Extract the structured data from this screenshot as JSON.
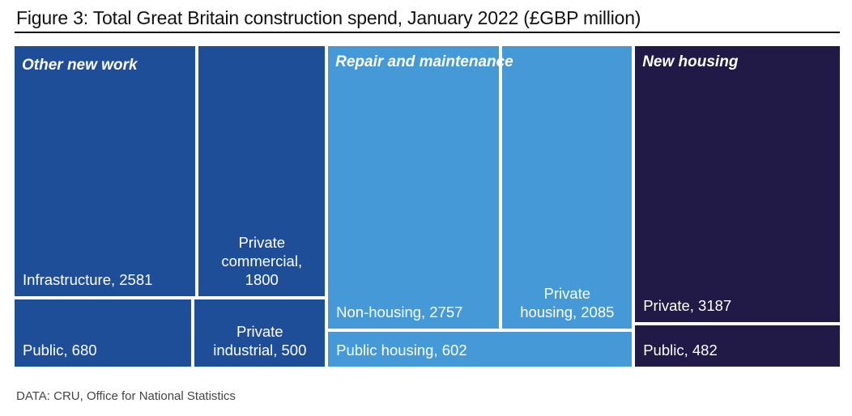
{
  "title": "Figure 3: Total Great Britain construction spend, January 2022 (£GBP million)",
  "source": "DATA: CRU, Office for National Statistics",
  "chart_data": {
    "type": "treemap",
    "title": "Figure 3: Total Great Britain construction spend, January 2022 (£GBP million)",
    "units": "£GBP million",
    "groups": [
      {
        "name": "Other new work",
        "color": "#1F4E99",
        "items": [
          {
            "name": "Infrastructure",
            "value": 2581,
            "label": "Infrastructure, 2581"
          },
          {
            "name": "Private commercial",
            "value": 1800,
            "label": "Private\ncommercial,\n1800"
          },
          {
            "name": "Public",
            "value": 680,
            "label": "Public, 680"
          },
          {
            "name": "Private industrial",
            "value": 500,
            "label": "Private\nindustrial, 500"
          }
        ]
      },
      {
        "name": "Repair and maintenance",
        "color": "#4499D6",
        "items": [
          {
            "name": "Non-housing",
            "value": 2757,
            "label": "Non-housing, 2757"
          },
          {
            "name": "Private housing",
            "value": 2085,
            "label": "Private\nhousing, 2085"
          },
          {
            "name": "Public housing",
            "value": 602,
            "label": "Public housing, 602"
          }
        ]
      },
      {
        "name": "New housing",
        "color": "#211A47",
        "items": [
          {
            "name": "Private",
            "value": 3187,
            "label": "Private, 3187"
          },
          {
            "name": "Public",
            "value": 482,
            "label": "Public, 482"
          }
        ]
      }
    ],
    "source": "DATA: CRU, Office for National Statistics"
  }
}
